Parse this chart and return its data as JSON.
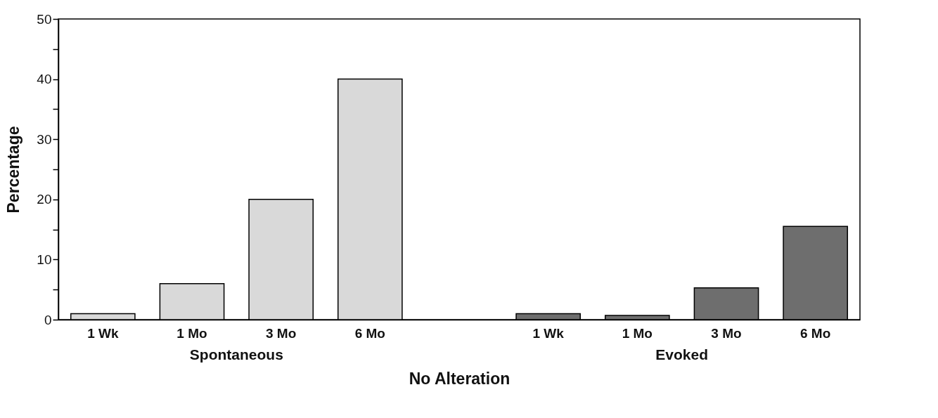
{
  "chart_data": {
    "type": "bar",
    "xlabel": "No Alteration",
    "ylabel": "Percentage",
    "categories": [
      "1 Wk",
      "1 Mo",
      "3 Mo",
      "6 Mo",
      null,
      "1 Wk",
      "1 Mo",
      "3 Mo",
      "6 Mo"
    ],
    "series": [
      {
        "name": "Spontaneous",
        "color": "#d9d9d9",
        "values": [
          1,
          6,
          20,
          40,
          null,
          null,
          null,
          null,
          null
        ]
      },
      {
        "name": "Evoked",
        "color": "#6e6e6e",
        "values": [
          null,
          null,
          null,
          null,
          null,
          1,
          0.7,
          5.3,
          15.5
        ]
      }
    ],
    "ylim": [
      0,
      50
    ],
    "yticks": [
      0,
      {
        "value": 5,
        "label": null
      },
      10,
      {
        "value": 15,
        "label": null
      },
      20,
      {
        "value": 25,
        "label": null
      },
      30,
      {
        "value": 35,
        "label": null
      },
      40,
      {
        "value": 45,
        "label": null
      },
      50
    ],
    "grid": false,
    "legend": false
  }
}
